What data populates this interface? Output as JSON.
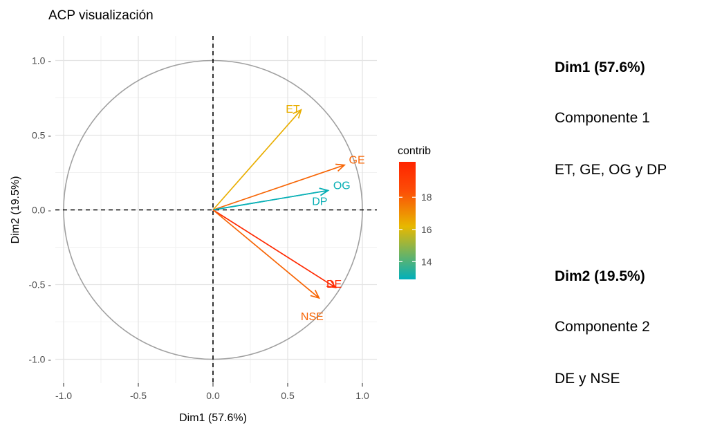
{
  "chart_data": {
    "type": "scatter",
    "subtype": "pca-variable-correlation-circle",
    "title": "ACP visualización",
    "xlabel": "Dim1 (57.6%)",
    "ylabel": "Dim2 (19.5%)",
    "xlim": [
      -1.0,
      1.0
    ],
    "ylim": [
      -1.0,
      1.0
    ],
    "x_ticks": [
      "-1.0",
      "-0.5",
      "0.0",
      "0.5",
      "1.0"
    ],
    "y_ticks": [
      "1.0 -",
      "0.5 -",
      "0.0 -",
      "-0.5 -",
      "-1.0 -"
    ],
    "grid": true,
    "unit_circle": true,
    "reference_lines": "dashed at x=0 and y=0",
    "vectors": [
      {
        "label": "ET",
        "x": 0.59,
        "y": 0.67,
        "contrib": 16.4
      },
      {
        "label": "GE",
        "x": 0.88,
        "y": 0.3,
        "contrib": 17.9
      },
      {
        "label": "OG",
        "x": 0.77,
        "y": 0.13,
        "contrib": 13.0
      },
      {
        "label": "DP",
        "x": 0.77,
        "y": 0.13,
        "contrib": 13.0
      },
      {
        "label": "DE",
        "x": 0.82,
        "y": -0.52,
        "contrib": 20.0
      },
      {
        "label": "NSE",
        "x": 0.71,
        "y": -0.59,
        "contrib": 17.9
      }
    ],
    "legend": {
      "title": "contrib",
      "placement": "right",
      "ticks": [
        "18",
        "16",
        "14"
      ],
      "tick_values": [
        18,
        16,
        14
      ],
      "range": [
        12.9,
        20.2
      ],
      "gradient": [
        "#00AFBB",
        "#E7B800",
        "#FC4E07",
        "#FF2400"
      ]
    }
  },
  "side_panel": {
    "dim1_heading": "Dim1 (57.6%)",
    "dim1_component": "Componente 1",
    "dim1_variables": "ET, GE, OG y DP",
    "dim2_heading": "Dim2 (19.5%)",
    "dim2_component": "Componente 2",
    "dim2_variables": "DE y NSE"
  }
}
